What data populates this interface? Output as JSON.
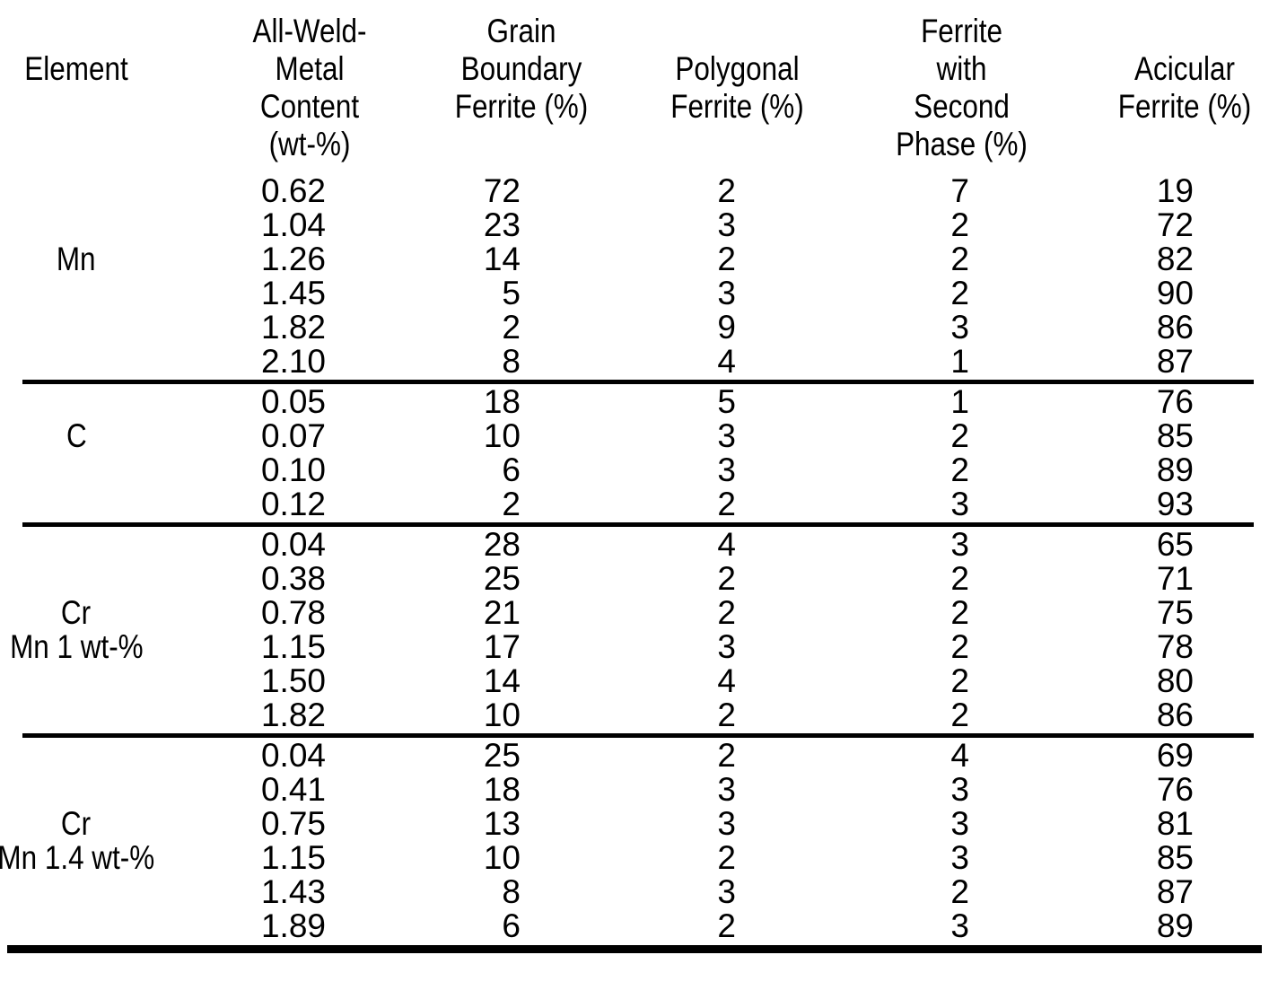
{
  "page": {
    "background_color": "#ffffff",
    "text_color": "#000000",
    "rule_color": "#000000"
  },
  "table": {
    "header": {
      "element": {
        "lines": [
          "",
          "Element",
          "",
          ""
        ]
      },
      "content": {
        "lines": [
          "All-Weld-",
          "Metal",
          "Content",
          "(wt-%)"
        ]
      },
      "grain_boundary": {
        "lines": [
          "Grain",
          "Boundary",
          "Ferrite (%)",
          ""
        ]
      },
      "polygonal": {
        "lines": [
          "",
          "Polygonal",
          "Ferrite (%)",
          ""
        ]
      },
      "second_phase": {
        "lines": [
          "Ferrite",
          "with",
          "Second",
          "Phase (%)"
        ]
      },
      "acicular": {
        "lines": [
          "",
          "Acicular",
          "Ferrite (%)",
          ""
        ]
      }
    },
    "column_keys": [
      "element",
      "content",
      "grain_boundary",
      "polygonal",
      "second_phase",
      "acicular"
    ],
    "sections": [
      {
        "id": "mn",
        "element_lines": [
          "Mn",
          ""
        ],
        "rows": [
          [
            "0.62",
            "72",
            "2",
            "7",
            "19"
          ],
          [
            "1.04",
            "23",
            "3",
            "2",
            "72"
          ],
          [
            "1.26",
            "14",
            "2",
            "2",
            "82"
          ],
          [
            "1.45",
            "5",
            "3",
            "2",
            "90"
          ],
          [
            "1.82",
            "2",
            "9",
            "3",
            "86"
          ],
          [
            "2.10",
            "8",
            "4",
            "1",
            "87"
          ]
        ]
      },
      {
        "id": "c",
        "element_lines": [
          "C",
          ""
        ],
        "rows": [
          [
            "0.05",
            "18",
            "5",
            "1",
            "76"
          ],
          [
            "0.07",
            "10",
            "3",
            "2",
            "85"
          ],
          [
            "0.10",
            "6",
            "3",
            "2",
            "89"
          ],
          [
            "0.12",
            "2",
            "2",
            "3",
            "93"
          ]
        ]
      },
      {
        "id": "cr-mn-1",
        "element_lines": [
          "Cr",
          "Mn 1 wt-%"
        ],
        "rows": [
          [
            "0.04",
            "28",
            "4",
            "3",
            "65"
          ],
          [
            "0.38",
            "25",
            "2",
            "2",
            "71"
          ],
          [
            "0.78",
            "21",
            "2",
            "2",
            "75"
          ],
          [
            "1.15",
            "17",
            "3",
            "2",
            "78"
          ],
          [
            "1.50",
            "14",
            "4",
            "2",
            "80"
          ],
          [
            "1.82",
            "10",
            "2",
            "2",
            "86"
          ]
        ]
      },
      {
        "id": "cr-mn-1-4",
        "element_lines": [
          "Cr",
          "Mn 1.4 wt-%"
        ],
        "rows": [
          [
            "0.04",
            "25",
            "2",
            "4",
            "69"
          ],
          [
            "0.41",
            "18",
            "3",
            "3",
            "76"
          ],
          [
            "0.75",
            "13",
            "3",
            "3",
            "81"
          ],
          [
            "1.15",
            "10",
            "2",
            "3",
            "85"
          ],
          [
            "1.43",
            "8",
            "3",
            "2",
            "87"
          ],
          [
            "1.89",
            "6",
            "2",
            "3",
            "89"
          ]
        ]
      }
    ]
  }
}
